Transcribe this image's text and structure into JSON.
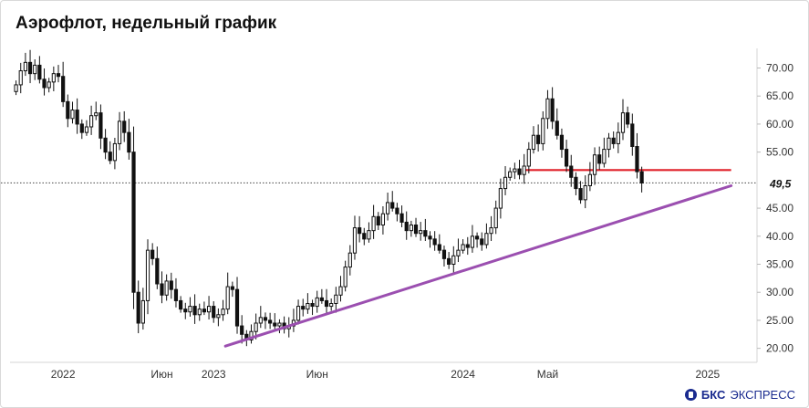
{
  "header": {
    "title": "Аэрофлот, недельный график"
  },
  "brand": {
    "name": "БКС",
    "suffix": "ЭКСПРЕСС"
  },
  "chart_data": {
    "type": "candlestick",
    "title": "Аэрофлот, недельный график",
    "timeframe": "weekly",
    "y_axis": {
      "position": "right",
      "range": [
        17.5,
        73.5
      ],
      "ticks": [
        "70.00",
        "65.00",
        "60.00",
        "55.00",
        "45.00",
        "40.00",
        "35.00",
        "30.00",
        "25.00",
        "20.00"
      ]
    },
    "x_axis": {
      "ticks": [
        {
          "label": "2022",
          "week": 10
        },
        {
          "label": "Июн",
          "week": 31
        },
        {
          "label": "2023",
          "week": 42
        },
        {
          "label": "Июн",
          "week": 64
        },
        {
          "label": "2024",
          "week": 95
        },
        {
          "label": "Май",
          "week": 113
        },
        {
          "label": "2025",
          "week": 147
        }
      ]
    },
    "horizontal_levels": [
      {
        "name": "last-price",
        "value": 49.5,
        "label": "49,5",
        "style": "dotted",
        "color": "#444444"
      },
      {
        "name": "resistance",
        "value": 51.8,
        "style": "solid",
        "color": "#e0202a",
        "from_week": 108,
        "to_week": 152
      }
    ],
    "trendlines": [
      {
        "name": "support",
        "from": {
          "week": 44.5,
          "value": 20.4
        },
        "to": {
          "week": 152,
          "value": 49.0
        },
        "color": "#9b4fb0"
      }
    ],
    "closes": [
      67.0,
      69.5,
      71.0,
      69.0,
      70.5,
      68.0,
      66.5,
      67.5,
      69.0,
      68.5,
      64.0,
      61.0,
      62.5,
      60.0,
      58.5,
      59.5,
      61.5,
      62.0,
      57.5,
      55.0,
      53.5,
      56.5,
      60.5,
      58.5,
      55.0,
      30.0,
      24.5,
      28.5,
      37.5,
      36.0,
      31.5,
      29.5,
      32.0,
      30.5,
      28.5,
      27.0,
      26.5,
      27.5,
      26.0,
      27.0,
      26.5,
      27.5,
      25.5,
      26.0,
      27.0,
      31.0,
      30.5,
      24.0,
      22.5,
      21.5,
      23.0,
      24.5,
      25.5,
      25.0,
      24.5,
      24.0,
      24.5,
      23.5,
      24.0,
      25.0,
      27.5,
      27.0,
      28.0,
      27.5,
      29.0,
      28.5,
      27.5,
      28.0,
      29.5,
      31.0,
      34.5,
      37.0,
      41.5,
      40.5,
      39.5,
      41.0,
      43.5,
      42.0,
      44.0,
      46.0,
      45.0,
      44.0,
      42.5,
      41.0,
      42.0,
      40.5,
      41.0,
      40.0,
      39.5,
      38.5,
      37.5,
      36.0,
      35.0,
      36.5,
      37.5,
      38.5,
      38.0,
      40.0,
      39.5,
      38.5,
      40.5,
      41.5,
      45.0,
      48.5,
      50.5,
      51.5,
      52.0,
      51.0,
      52.5,
      55.5,
      58.0,
      56.5,
      61.0,
      64.5,
      60.5,
      58.0,
      55.5,
      52.5,
      50.5,
      48.5,
      46.5,
      49.0,
      51.0,
      54.5,
      53.0,
      55.5,
      57.5,
      56.5,
      58.5,
      62.0,
      60.0,
      56.0,
      51.5,
      49.5
    ]
  }
}
